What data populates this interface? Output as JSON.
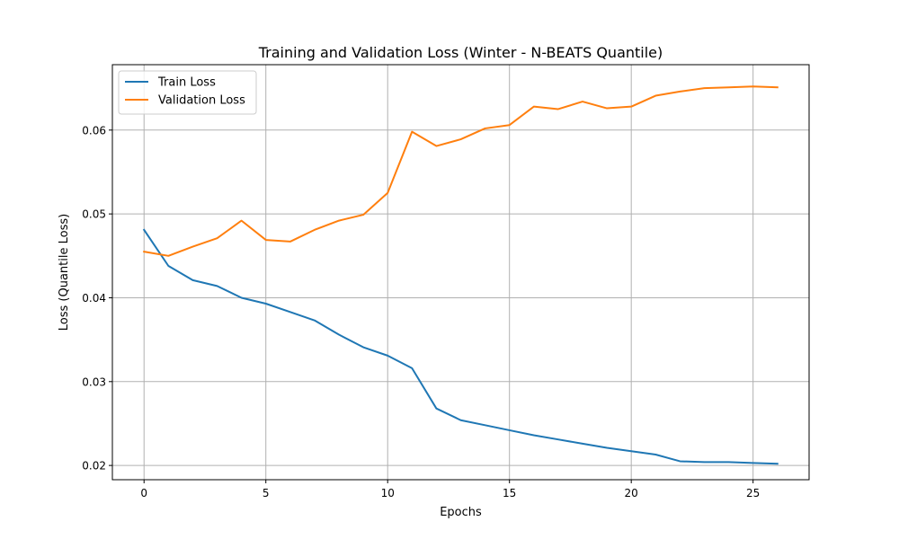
{
  "chart_data": {
    "type": "line",
    "title": "Training and Validation Loss (Winter - N-BEATS Quantile)",
    "xlabel": "Epochs",
    "ylabel": "Loss (Quantile Loss)",
    "xlim": [
      -1.3,
      27.3
    ],
    "ylim": [
      0.0183,
      0.0678
    ],
    "xticks": [
      0,
      5,
      10,
      15,
      20,
      25
    ],
    "xtick_labels": [
      "0",
      "5",
      "10",
      "15",
      "20",
      "25"
    ],
    "yticks": [
      0.02,
      0.03,
      0.04,
      0.05,
      0.06
    ],
    "ytick_labels": [
      "0.02",
      "0.03",
      "0.04",
      "0.05",
      "0.06"
    ],
    "grid": true,
    "legend_position": "top-left",
    "x": [
      0,
      1,
      2,
      3,
      4,
      5,
      6,
      7,
      8,
      9,
      10,
      11,
      12,
      13,
      14,
      15,
      16,
      17,
      18,
      19,
      20,
      21,
      22,
      23,
      24,
      25,
      26
    ],
    "series": [
      {
        "name": "Train Loss",
        "color": "#1f77b4",
        "values": [
          0.0481,
          0.0438,
          0.0421,
          0.0414,
          0.04,
          0.0393,
          0.0383,
          0.0373,
          0.0356,
          0.0341,
          0.0331,
          0.0316,
          0.0268,
          0.0254,
          0.0248,
          0.0242,
          0.0236,
          0.0231,
          0.0226,
          0.0221,
          0.0217,
          0.0213,
          0.0205,
          0.0204,
          0.0204,
          0.0203,
          0.0202
        ]
      },
      {
        "name": "Validation Loss",
        "color": "#ff7f0e",
        "values": [
          0.0455,
          0.045,
          0.0461,
          0.0471,
          0.0492,
          0.0469,
          0.0467,
          0.0481,
          0.0492,
          0.0499,
          0.0525,
          0.0598,
          0.0581,
          0.0589,
          0.0602,
          0.0606,
          0.0628,
          0.0625,
          0.0634,
          0.0626,
          0.0628,
          0.0641,
          0.0646,
          0.065,
          0.0651,
          0.0652,
          0.0651
        ]
      }
    ]
  }
}
